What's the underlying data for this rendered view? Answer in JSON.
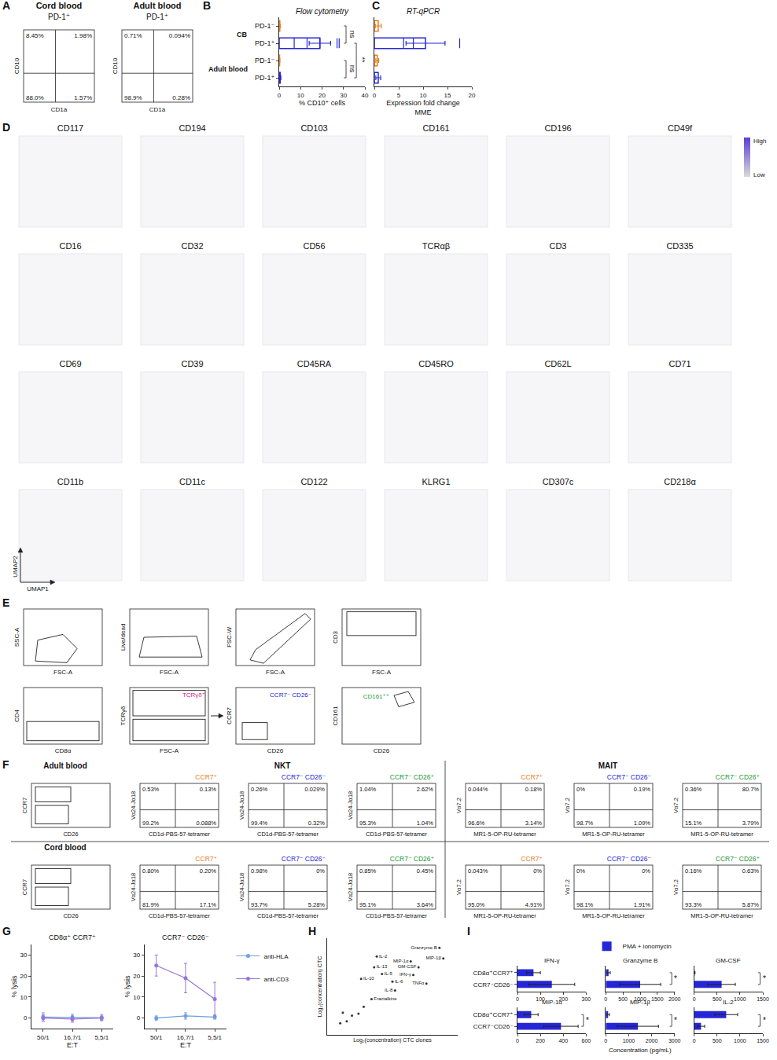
{
  "chart_data": [
    {
      "panel": "B",
      "type": "bar",
      "orientation": "horizontal",
      "title": "Flow cytometry",
      "x_label": "% CD10⁺ cells",
      "categories": [
        "PD-1⁻",
        "PD-1⁺",
        "PD-1⁻",
        "PD-1⁺"
      ],
      "groups": [
        {
          "label": "CB",
          "indices": [
            0,
            1
          ]
        },
        {
          "label": "Adult blood",
          "indices": [
            2,
            3
          ]
        }
      ],
      "values": [
        0.3,
        19,
        0.2,
        0.5
      ],
      "errors": [
        0.2,
        5,
        0.1,
        0.3
      ],
      "points": [
        [],
        [
          7,
          13,
          19,
          27,
          28
        ],
        [],
        []
      ],
      "colors": [
        "#e87e1e",
        "#2626d9",
        "#e87e1e",
        "#2626d9"
      ],
      "xlim": [
        0,
        40
      ],
      "xticks": [
        0,
        10,
        20,
        30,
        40
      ],
      "annotations": [
        {
          "text": "ns",
          "between": [
            0,
            1
          ]
        },
        {
          "text": "**",
          "between": [
            1,
            3
          ]
        },
        {
          "text": "ns",
          "between": [
            2,
            3
          ]
        }
      ]
    },
    {
      "panel": "C",
      "type": "bar",
      "orientation": "horizontal",
      "title": "RT-qPCR",
      "x_label": "Expression fold change MME",
      "categories": [
        "PD-1⁻",
        "PD-1⁺",
        "PD-1⁻",
        "PD-1⁺"
      ],
      "values": [
        0.8,
        10.5,
        0.6,
        0.8
      ],
      "errors": [
        0.6,
        4,
        0.3,
        0.5
      ],
      "points": [
        [],
        [
          6,
          8,
          17.5
        ],
        [],
        []
      ],
      "colors": [
        "#e87e1e",
        "#2626d9",
        "#e87e1e",
        "#2626d9"
      ],
      "xlim": [
        0,
        20
      ],
      "xticks": [
        0,
        5,
        10,
        15,
        20
      ],
      "tick_labels": "x"
    },
    {
      "panel": "G",
      "type": "line",
      "x_label": "E:T",
      "y_label": "% lysis",
      "categories": [
        "50/1",
        "16,7/1",
        "5,5/1"
      ],
      "ylim": [
        -5,
        35
      ],
      "yticks": [
        0,
        10,
        20,
        30
      ],
      "legend": "right",
      "subplots": [
        {
          "title": "CD8α⁺ CCR7⁺",
          "series": [
            {
              "name": "anti-HLA",
              "color": "#6f9fe0",
              "marker": "circle",
              "values": [
                0.5,
                0.3,
                0.2
              ],
              "errors": [
                2,
                1.5,
                1.5
              ]
            },
            {
              "name": "anti-CD3",
              "color": "#9a74d8",
              "marker": "circle",
              "values": [
                0,
                -0.5,
                0
              ],
              "errors": [
                1.5,
                1.5,
                1
              ]
            }
          ]
        },
        {
          "title": "CCR7⁻ CD26⁻",
          "series": [
            {
              "name": "anti-HLA",
              "color": "#6f9fe0",
              "marker": "circle",
              "values": [
                0,
                1,
                0.5
              ],
              "errors": [
                1,
                1.5,
                1
              ]
            },
            {
              "name": "anti-CD3",
              "color": "#9a74d8",
              "marker": "circle",
              "values": [
                25,
                19,
                9
              ],
              "errors": [
                5,
                7,
                8
              ]
            }
          ]
        }
      ]
    },
    {
      "panel": "H",
      "type": "scatter",
      "x_label": "Log₂(concentration) CTC clones",
      "y_label": "Log₂(concentration) CTC",
      "xlim": [
        0,
        10
      ],
      "ylim": [
        0,
        10
      ],
      "tick_labels": false,
      "color": "#333333",
      "points": [
        {
          "label": "Granzyme B",
          "x": 8.6,
          "y": 9.0
        },
        {
          "label": "MIP-1β",
          "x": 8.9,
          "y": 7.9
        },
        {
          "label": "MIP-1α",
          "x": 6.4,
          "y": 7.6
        },
        {
          "label": "GM-CSF",
          "x": 7.0,
          "y": 7.0
        },
        {
          "label": "IL-2",
          "x": 3.8,
          "y": 8.1
        },
        {
          "label": "IFN-γ",
          "x": 6.6,
          "y": 6.2
        },
        {
          "label": "TNFα",
          "x": 7.6,
          "y": 5.3
        },
        {
          "label": "IL-13",
          "x": 3.6,
          "y": 7.0
        },
        {
          "label": "IL-5",
          "x": 4.2,
          "y": 6.3
        },
        {
          "label": "IL-10",
          "x": 2.6,
          "y": 5.8
        },
        {
          "label": "IL-6",
          "x": 5.0,
          "y": 5.5
        },
        {
          "label": "IL-8",
          "x": 5.2,
          "y": 4.6
        },
        {
          "label": "Fractalkine",
          "x": 3.4,
          "y": 3.7
        },
        {
          "label": null,
          "x": 1.0,
          "y": 1.2
        },
        {
          "label": null,
          "x": 1.5,
          "y": 1.4
        },
        {
          "label": null,
          "x": 1.9,
          "y": 2.0
        },
        {
          "label": null,
          "x": 2.4,
          "y": 2.2
        },
        {
          "label": null,
          "x": 2.8,
          "y": 2.9
        },
        {
          "label": null,
          "x": 1.2,
          "y": 2.3
        }
      ]
    },
    {
      "panel": "I",
      "type": "bar",
      "orientation": "horizontal",
      "x_label": "Concentration (pg/mL)",
      "categories": [
        "CD8α⁺CCR7⁺",
        "CCR7⁻CD26⁻"
      ],
      "legend": "top",
      "series": [
        {
          "name": "PMA + ionomycin",
          "color": "#2626d9"
        }
      ],
      "subplots": [
        {
          "title": "IFN-γ",
          "values": [
            70,
            150
          ],
          "errors": [
            30,
            100
          ],
          "xlim": [
            0,
            300
          ],
          "xticks": [
            0,
            100,
            200,
            300
          ]
        },
        {
          "title": "Granzyme B",
          "values": [
            80,
            1000
          ],
          "errors": [
            50,
            600
          ],
          "xlim": [
            0,
            2000
          ],
          "xticks": [
            0,
            500,
            1000,
            1500,
            2000
          ],
          "annotations": [
            "*"
          ]
        },
        {
          "title": "GM-CSF",
          "values": [
            10,
            600
          ],
          "errors": [
            10,
            300
          ],
          "xlim": [
            0,
            1500
          ],
          "xticks": [
            0,
            500,
            1000,
            1500
          ],
          "annotations": [
            "*"
          ]
        },
        {
          "title": "MIP-1α",
          "values": [
            120,
            380
          ],
          "errors": [
            60,
            150
          ],
          "xlim": [
            0,
            600
          ],
          "xticks": [
            0,
            200,
            400,
            600
          ],
          "annotations": [
            "*"
          ]
        },
        {
          "title": "MIP-1β",
          "values": [
            100,
            1400
          ],
          "errors": [
            60,
            900
          ],
          "xlim": [
            0,
            3000
          ],
          "xticks": [
            0,
            1000,
            2000,
            3000
          ],
          "annotations": [
            "*"
          ]
        },
        {
          "title": "IL-2",
          "values": [
            700,
            150
          ],
          "errors": [
            250,
            80
          ],
          "xlim": [
            0,
            1500
          ],
          "xticks": [
            0,
            500,
            1000,
            1500
          ],
          "annotations": [
            "*"
          ]
        }
      ]
    }
  ],
  "diagrams": {
    "A": {
      "panel": "A",
      "x_label": "CD1a",
      "y_label": "CD10",
      "plots": [
        {
          "title": "Cord blood",
          "subtitle": "PD-1⁺",
          "quadrants": [
            "8.45%",
            "1.98%",
            "88.0%",
            "1.57%"
          ]
        },
        {
          "title": "Adult blood",
          "subtitle": "PD-1⁺",
          "quadrants": [
            "0.71%",
            "0.094%",
            "98.9%",
            "0.28%"
          ]
        }
      ]
    },
    "D": {
      "panel": "D",
      "x_label": "UMAP1",
      "y_label": "UMAP2",
      "titles": [
        "CD117",
        "CD194",
        "CD103",
        "CD161",
        "CD196",
        "CD49f",
        "CD16",
        "CD32",
        "CD56",
        "TCRαβ",
        "CD3",
        "CD335",
        "CD69",
        "CD39",
        "CD45RA",
        "CD45RO",
        "CD62L",
        "CD71",
        "CD11b",
        "CD11c",
        "CD122",
        "KLRG1",
        "CD307c",
        "CD218α"
      ],
      "colorbar": {
        "high": "High",
        "low": "Low",
        "colors": [
          "#d9d9d9",
          "#5b3fd6"
        ]
      }
    },
    "E": {
      "panel": "E",
      "plots": [
        {
          "x": "FSC-A",
          "y": "SSC-A"
        },
        {
          "x": "FSC-A",
          "y": "Live/dead"
        },
        {
          "x": "FSC-A",
          "y": "FSC-W"
        },
        {
          "x": "FSC-A",
          "y": "CD3"
        },
        {
          "x": "CD8α",
          "y": "CD4"
        },
        {
          "x": "FSC-A",
          "y": "TCRγδ",
          "gate": "TCRγδ⁺",
          "color": "#e0207a"
        },
        {
          "x": "CD26",
          "y": "CCR7",
          "gate": "CCR7⁻ CD26⁻",
          "color": "#2626d9"
        },
        {
          "x": "CD26",
          "y": "CD161",
          "gate": "CD161⁺⁺",
          "color": "#1e9a3a"
        }
      ]
    },
    "F": {
      "panel": "F",
      "gate_plot": {
        "x": "CD26",
        "y": "CCR7"
      },
      "groups": [
        {
          "label": "NKT",
          "x": "CD1d-PBS-57-tetramer",
          "y": "Vα24-Jα18"
        },
        {
          "label": "MAIT",
          "x": "MR1-5-OP-RU-tetramer",
          "y": "Vα7.2"
        }
      ],
      "subsets": [
        {
          "label": "CCR7⁺",
          "color": "#e87e1e"
        },
        {
          "label": "CCR7⁻ CD26⁻",
          "color": "#2626d9"
        },
        {
          "label": "CCR7⁻ CD26⁺",
          "color": "#1e9a3a"
        }
      ],
      "rows": [
        {
          "label": "Adult blood",
          "quadrants": [
            [
              "0.53%",
              "0.13%",
              "99.2%",
              "0.088%"
            ],
            [
              "0.26%",
              "0.029%",
              "99.4%",
              "0.32%"
            ],
            [
              "1.04%",
              "2.62%",
              "95.3%",
              "1.04%"
            ],
            [
              "0.044%",
              "0.18%",
              "96.6%",
              "3.14%"
            ],
            [
              "0%",
              "0.19%",
              "98.7%",
              "1.09%"
            ],
            [
              "0.36%",
              "80.7%",
              "15.1%",
              "3.79%"
            ]
          ]
        },
        {
          "label": "Cord blood",
          "quadrants": [
            [
              "0.80%",
              "0.20%",
              "81.9%",
              "17.1%"
            ],
            [
              "0.98%",
              "0%",
              "93.7%",
              "5.28%"
            ],
            [
              "0.85%",
              "0.45%",
              "95.1%",
              "3.64%"
            ],
            [
              "0.043%",
              "0%",
              "95.0%",
              "4.91%"
            ],
            [
              "0%",
              "0%",
              "98.1%",
              "1.91%"
            ],
            [
              "0.16%",
              "0.63%",
              "93.3%",
              "5.87%"
            ]
          ]
        }
      ]
    }
  }
}
